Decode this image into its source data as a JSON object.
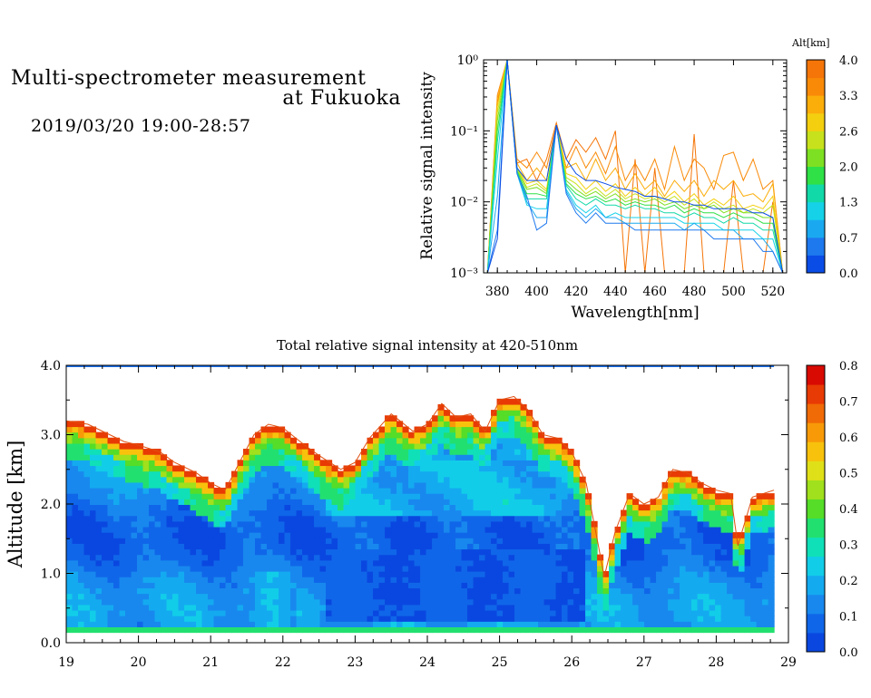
{
  "header": {
    "title_line1": "Multi-spectrometer measurement",
    "title_line2": "at Fukuoka",
    "datetime": "2019/03/20 19:00-28:57"
  },
  "chart_data": [
    {
      "type": "line",
      "xlabel": "Wavelength[nm]",
      "ylabel": "Relative signal intensity",
      "yscale": "log",
      "xlim": [
        373,
        527
      ],
      "ylim": [
        0.001,
        1
      ],
      "x_ticks": [
        380,
        400,
        420,
        440,
        460,
        480,
        500,
        520
      ],
      "y_ticks": [
        {
          "value": 1,
          "label": "10⁰"
        },
        {
          "value": 0.1,
          "label": "10⁻¹"
        },
        {
          "value": 0.01,
          "label": "10⁻²"
        },
        {
          "value": 0.001,
          "label": "10⁻³"
        }
      ],
      "x": [
        375,
        380,
        385,
        390,
        395,
        400,
        405,
        410,
        415,
        420,
        425,
        430,
        435,
        440,
        445,
        450,
        455,
        460,
        465,
        470,
        475,
        480,
        485,
        490,
        495,
        500,
        505,
        510,
        515,
        520,
        525
      ],
      "colorbar": {
        "title": "Alt[km]",
        "labels": [
          "4.0",
          "3.3",
          "2.6",
          "2.0",
          "1.3",
          "0.7",
          "0.0"
        ],
        "range": [
          0,
          4
        ],
        "colors": [
          "#0a4ce6",
          "#1e78ee",
          "#1aa9f0",
          "#15d2e8",
          "#12d9a8",
          "#2fe046",
          "#7ee022",
          "#c7e21c",
          "#f4cf10",
          "#fbad0a",
          "#f98a08",
          "#f57508"
        ]
      },
      "series": [
        {
          "alt": 4.0,
          "values": [
            0.001,
            0.25,
            1,
            0.035,
            0.04,
            0.02,
            0.04,
            0.13,
            0.04,
            0.075,
            0.05,
            0.08,
            0.04,
            0.1,
            0.001,
            0.04,
            0.001,
            0.03,
            0.001,
            0.001,
            0.001,
            0.09,
            0.001,
            0.001,
            0.001,
            0.02,
            0.001,
            0.001,
            0.001,
            0.01,
            0.001
          ]
        },
        {
          "alt": 3.6,
          "values": [
            0.001,
            0.32,
            1,
            0.04,
            0.03,
            0.05,
            0.03,
            0.12,
            0.03,
            0.06,
            0.03,
            0.05,
            0.025,
            0.06,
            0.02,
            0.035,
            0.02,
            0.04,
            0.015,
            0.06,
            0.02,
            0.04,
            0.03,
            0.015,
            0.045,
            0.05,
            0.02,
            0.04,
            0.015,
            0.02,
            0.001
          ]
        },
        {
          "alt": 3.3,
          "values": [
            0.001,
            0.28,
            1,
            0.035,
            0.02,
            0.03,
            0.02,
            0.12,
            0.03,
            0.035,
            0.02,
            0.04,
            0.02,
            0.03,
            0.015,
            0.025,
            0.015,
            0.02,
            0.012,
            0.02,
            0.014,
            0.02,
            0.012,
            0.02,
            0.015,
            0.02,
            0.012,
            0.013,
            0.01,
            0.018,
            0.001
          ]
        },
        {
          "alt": 2.9,
          "values": [
            0.001,
            0.22,
            1,
            0.03,
            0.018,
            0.02,
            0.015,
            0.12,
            0.025,
            0.022,
            0.015,
            0.02,
            0.014,
            0.018,
            0.012,
            0.016,
            0.012,
            0.016,
            0.011,
            0.014,
            0.01,
            0.013,
            0.009,
            0.011,
            0.009,
            0.012,
            0.008,
            0.009,
            0.008,
            0.012,
            0.001
          ]
        },
        {
          "alt": 2.6,
          "values": [
            0.001,
            0.18,
            1,
            0.03,
            0.016,
            0.018,
            0.014,
            0.12,
            0.022,
            0.018,
            0.013,
            0.016,
            0.012,
            0.015,
            0.011,
            0.013,
            0.011,
            0.012,
            0.01,
            0.012,
            0.009,
            0.011,
            0.008,
            0.01,
            0.008,
            0.009,
            0.007,
            0.008,
            0.007,
            0.009,
            0.001
          ]
        },
        {
          "alt": 2.2,
          "values": [
            0.001,
            0.14,
            1,
            0.028,
            0.015,
            0.016,
            0.013,
            0.12,
            0.02,
            0.015,
            0.012,
            0.014,
            0.011,
            0.013,
            0.01,
            0.011,
            0.01,
            0.011,
            0.009,
            0.01,
            0.008,
            0.009,
            0.008,
            0.009,
            0.007,
            0.008,
            0.007,
            0.007,
            0.006,
            0.006,
            0.001
          ]
        },
        {
          "alt": 1.9,
          "values": [
            0.001,
            0.1,
            1,
            0.027,
            0.013,
            0.013,
            0.012,
            0.12,
            0.018,
            0.013,
            0.011,
            0.012,
            0.01,
            0.011,
            0.009,
            0.01,
            0.009,
            0.009,
            0.008,
            0.009,
            0.007,
            0.008,
            0.007,
            0.007,
            0.006,
            0.007,
            0.006,
            0.006,
            0.005,
            0.005,
            0.001
          ]
        },
        {
          "alt": 1.5,
          "values": [
            0.001,
            0.07,
            1,
            0.026,
            0.011,
            0.011,
            0.011,
            0.12,
            0.017,
            0.011,
            0.009,
            0.011,
            0.009,
            0.009,
            0.008,
            0.009,
            0.008,
            0.008,
            0.007,
            0.007,
            0.006,
            0.007,
            0.006,
            0.006,
            0.005,
            0.006,
            0.005,
            0.005,
            0.004,
            0.004,
            0.001
          ]
        },
        {
          "alt": 1.1,
          "values": [
            0.001,
            0.04,
            1,
            0.025,
            0.009,
            0.008,
            0.008,
            0.12,
            0.015,
            0.009,
            0.007,
            0.009,
            0.006,
            0.007,
            0.006,
            0.006,
            0.006,
            0.006,
            0.006,
            0.006,
            0.005,
            0.005,
            0.005,
            0.005,
            0.004,
            0.004,
            0.004,
            0.004,
            0.003,
            0.003,
            0.001
          ]
        },
        {
          "alt": 0.8,
          "values": [
            0.001,
            0.012,
            1,
            0.025,
            0.01,
            0.006,
            0.006,
            0.12,
            0.014,
            0.008,
            0.006,
            0.008,
            0.006,
            0.006,
            0.005,
            0.005,
            0.005,
            0.005,
            0.005,
            0.005,
            0.004,
            0.005,
            0.004,
            0.004,
            0.004,
            0.004,
            0.003,
            0.003,
            0.003,
            0.002,
            0.001
          ]
        },
        {
          "alt": 0.5,
          "values": [
            0.001,
            0.004,
            1,
            0.025,
            0.012,
            0.004,
            0.005,
            0.12,
            0.013,
            0.007,
            0.005,
            0.007,
            0.005,
            0.005,
            0.005,
            0.004,
            0.004,
            0.004,
            0.004,
            0.004,
            0.004,
            0.004,
            0.004,
            0.003,
            0.003,
            0.003,
            0.003,
            0.003,
            0.002,
            0.002,
            0.001
          ]
        },
        {
          "alt": 0.2,
          "values": [
            0.001,
            0.003,
            1,
            0.03,
            0.02,
            0.02,
            0.02,
            0.12,
            0.04,
            0.025,
            0.02,
            0.02,
            0.018,
            0.016,
            0.015,
            0.014,
            0.012,
            0.012,
            0.011,
            0.01,
            0.01,
            0.009,
            0.009,
            0.008,
            0.008,
            0.008,
            0.008,
            0.007,
            0.007,
            0.006,
            0.001
          ]
        }
      ]
    },
    {
      "type": "heatmap",
      "title": "Total relative signal intensity at 420-510nm",
      "xlabel": "",
      "ylabel": "Altitude [km]",
      "xlim": [
        19,
        29
      ],
      "ylim": [
        0,
        4
      ],
      "x_ticks": [
        "19",
        "20",
        "21",
        "22",
        "23",
        "24",
        "25",
        "26",
        "27",
        "28",
        "29"
      ],
      "y_ticks": [
        "0.0",
        "1.0",
        "2.0",
        "3.0",
        "4.0"
      ],
      "data_x_range": [
        19,
        28.8
      ],
      "data_y_range": [
        0.15,
        4.0
      ],
      "cloud_top_km": [
        [
          19.0,
          3.2
        ],
        [
          19.3,
          3.15
        ],
        [
          19.6,
          3.0
        ],
        [
          19.8,
          2.9
        ],
        [
          20.0,
          2.85
        ],
        [
          20.3,
          2.75
        ],
        [
          20.5,
          2.6
        ],
        [
          20.8,
          2.45
        ],
        [
          21.0,
          2.3
        ],
        [
          21.2,
          2.2
        ],
        [
          21.4,
          2.6
        ],
        [
          21.6,
          3.0
        ],
        [
          21.8,
          3.15
        ],
        [
          22.0,
          3.1
        ],
        [
          22.3,
          2.85
        ],
        [
          22.5,
          2.7
        ],
        [
          22.8,
          2.5
        ],
        [
          23.0,
          2.6
        ],
        [
          23.2,
          2.95
        ],
        [
          23.5,
          3.3
        ],
        [
          23.8,
          3.05
        ],
        [
          24.0,
          3.15
        ],
        [
          24.2,
          3.45
        ],
        [
          24.4,
          3.25
        ],
        [
          24.6,
          3.3
        ],
        [
          24.8,
          3.05
        ],
        [
          25.0,
          3.5
        ],
        [
          25.2,
          3.55
        ],
        [
          25.4,
          3.35
        ],
        [
          25.6,
          3.0
        ],
        [
          25.8,
          2.95
        ],
        [
          26.0,
          2.75
        ],
        [
          26.2,
          2.3
        ],
        [
          26.35,
          1.5
        ],
        [
          26.45,
          0.95
        ],
        [
          26.6,
          1.6
        ],
        [
          26.8,
          2.15
        ],
        [
          27.0,
          2.0
        ],
        [
          27.2,
          2.1
        ],
        [
          27.4,
          2.5
        ],
        [
          27.6,
          2.45
        ],
        [
          27.8,
          2.3
        ],
        [
          28.0,
          2.2
        ],
        [
          28.2,
          2.15
        ],
        [
          28.3,
          1.4
        ],
        [
          28.5,
          2.1
        ],
        [
          28.8,
          2.2
        ]
      ],
      "colorbar": {
        "labels": [
          "0.8",
          "0.7",
          "0.6",
          "0.5",
          "0.4",
          "0.3",
          "0.2",
          "0.1",
          "0.0"
        ],
        "range": [
          0,
          0.8
        ],
        "colors": [
          "#0a47e0",
          "#1066e8",
          "#1888ee",
          "#14aaf0",
          "#12cde8",
          "#10e0b8",
          "#22e070",
          "#55dd28",
          "#a0e01c",
          "#e0e018",
          "#f8c20c",
          "#f89a08",
          "#f06a06",
          "#e83a04",
          "#d80a02"
        ]
      }
    }
  ]
}
